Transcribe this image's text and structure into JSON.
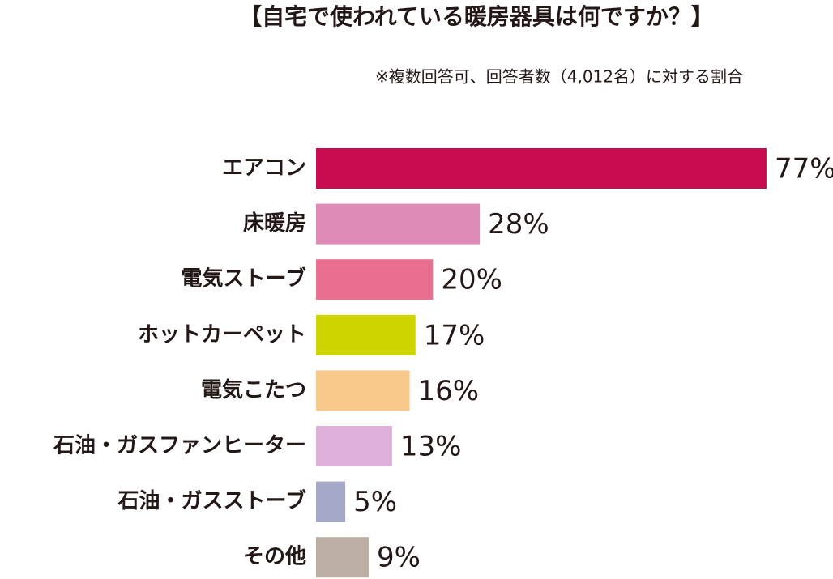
{
  "chart_data": {
    "type": "bar",
    "orientation": "horizontal",
    "title": "【自宅で使われている暖房器具は何ですか？】",
    "subtitle": "※複数回答可、回答者数（4,012名）に対する割合",
    "categories": [
      "エアコン",
      "床暖房",
      "電気ストーブ",
      "ホットカーペット",
      "電気こたつ",
      "石油・ガスファンヒーター",
      "石油・ガスストーブ",
      "その他"
    ],
    "values": [
      77,
      28,
      20,
      17,
      16,
      13,
      5,
      9
    ],
    "value_labels": [
      "77%",
      "28%",
      "20%",
      "17%",
      "16%",
      "13%",
      "5%",
      "9%"
    ],
    "colors": [
      "#c70c4f",
      "#de8bb8",
      "#ea7090",
      "#cdd400",
      "#f8c98a",
      "#ddb1da",
      "#a3a9c7",
      "#bcaea2"
    ]
  }
}
